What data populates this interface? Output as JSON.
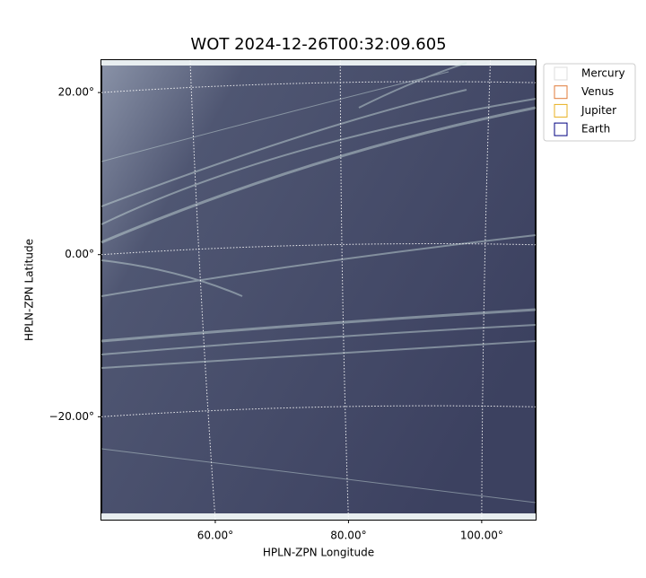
{
  "chart_data": {
    "type": "image",
    "title": "WOT 2024-12-26T00:32:09.605",
    "x_label": "HPLN-ZPN Longitude",
    "y_label": "HPLN-ZPN Latitude",
    "xlim": [
      42.9,
      108.1
    ],
    "ylim": [
      -32.7,
      24.0
    ],
    "xticks": [
      {
        "value": 60,
        "label": "60.00°"
      },
      {
        "value": 80,
        "label": "80.00°"
      },
      {
        "value": 100,
        "label": "100.00°"
      }
    ],
    "yticks": [
      {
        "value": -20,
        "label": "−20.00°"
      },
      {
        "value": 0,
        "label": "0.00°"
      },
      {
        "value": 20,
        "label": "20.00°"
      }
    ],
    "grid": true,
    "legend": "outside upper right",
    "series": [
      {
        "name": "Mercury",
        "color": "#dddddd"
      },
      {
        "name": "Venus",
        "color": "#e07b39"
      },
      {
        "name": "Jupiter",
        "color": "#e8b020"
      },
      {
        "name": "Earth",
        "color": "#000080"
      }
    ]
  }
}
